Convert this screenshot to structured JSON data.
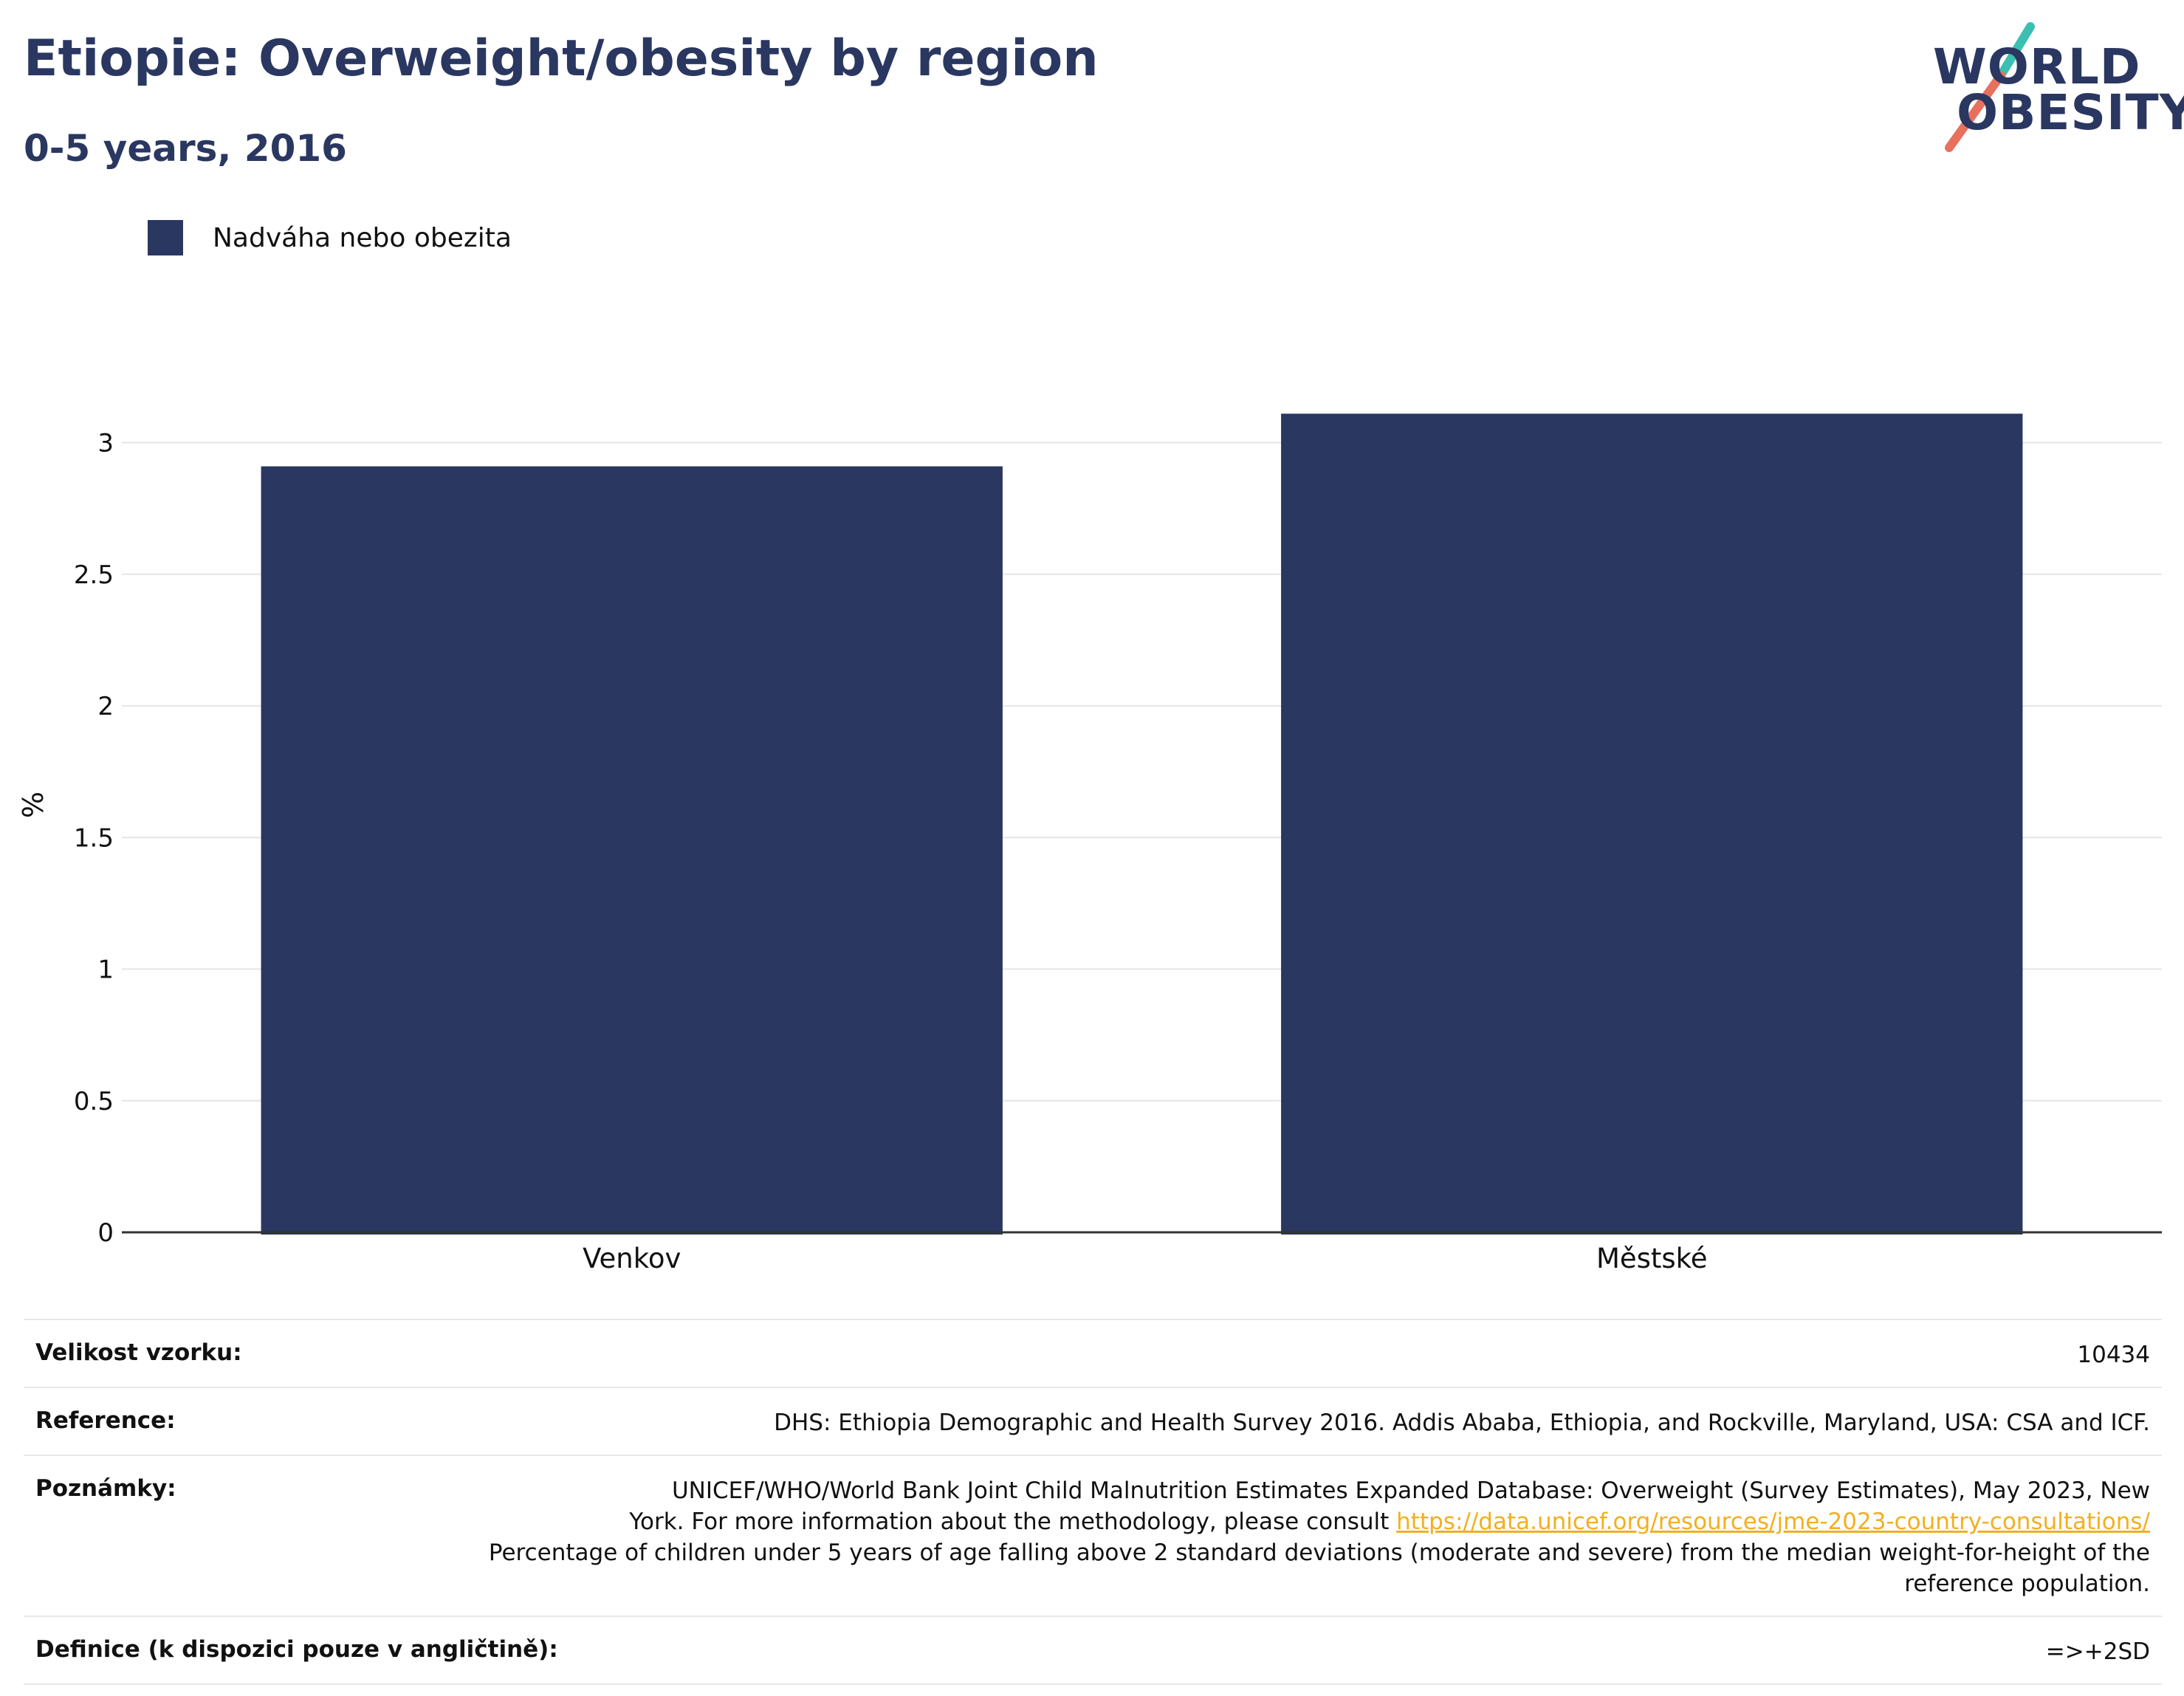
{
  "title": "Etiopie: Overweight/obesity by region",
  "subtitle": "0-5 years, 2016",
  "logo": {
    "line1": "WORLD",
    "line2": "OBESITY",
    "accent_teal": "#3bbfb3",
    "accent_coral": "#e8705f"
  },
  "colors": {
    "bar": "#2a3761",
    "title": "#2a3761",
    "link": "#f2b01e",
    "grid": "#e6e6e6"
  },
  "chart_data": {
    "type": "bar",
    "categories": [
      "Venkov",
      "Městské"
    ],
    "series": [
      {
        "name": "Nadváha nebo obezita",
        "values": [
          2.91,
          3.11
        ]
      }
    ],
    "ylabel": "%",
    "ylim": [
      0,
      3.3
    ],
    "yticks": [
      0,
      0.5,
      1,
      1.5,
      2,
      2.5,
      3
    ],
    "ytick_labels": [
      "0",
      "0.5",
      "1",
      "1.5",
      "2",
      "2.5",
      "3"
    ],
    "grid": true,
    "legend_position": "top-left"
  },
  "info": {
    "sample_size": {
      "label": "Velikost vzorku:",
      "value": "10434"
    },
    "reference": {
      "label": "Reference:",
      "value": "DHS: Ethiopia Demographic and Health Survey 2016. Addis Ababa, Ethiopia, and Rockville, Maryland, USA: CSA and ICF."
    },
    "notes": {
      "label": "Poznámky:",
      "line1": "UNICEF/WHO/World Bank Joint Child Malnutrition Estimates Expanded Database: Overweight (Survey Estimates), May 2023, New",
      "line2_prefix": "York. For more information about the methodology, please consult ",
      "link": "https://data.unicef.org/resources/jme-2023-country-consultations/",
      "line3": "Percentage of children under 5 years of age falling above 2 standard deviations (moderate and severe) from the median weight-for-height of the reference population."
    },
    "definition": {
      "label": "Definice (k dispozici pouze v angličtině):",
      "value": "=>+2SD"
    }
  }
}
